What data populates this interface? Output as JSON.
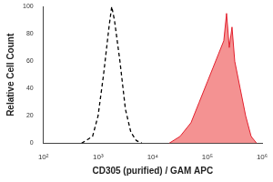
{
  "chart_data": {
    "type": "line",
    "log": "x",
    "xlabel": "CD305 (purified) / GAM APC",
    "ylabel": "Relative Cell Count",
    "xlim": [
      100,
      1000000
    ],
    "xticks": [
      {
        "value": 100,
        "label": "10²"
      },
      {
        "value": 1000,
        "label": "10³"
      },
      {
        "value": 10000,
        "label": "10⁴"
      },
      {
        "value": 100000,
        "label": "10⁵"
      },
      {
        "value": 1000000,
        "label": "10⁶"
      }
    ],
    "ylim": [
      0,
      100
    ],
    "yticks": [
      0,
      20,
      40,
      60,
      80,
      100
    ],
    "grid": false,
    "series": [
      {
        "color": "#000000",
        "line_style": "dashed",
        "x": [
          501,
          794,
          1000,
          1259,
          1585,
          1778,
          1995,
          2512,
          3162,
          3981,
          5012,
          6310
        ],
        "values": [
          0,
          5,
          20,
          50,
          85,
          100,
          90,
          60,
          25,
          8,
          2,
          0
        ]
      },
      {
        "color": "#e3202e",
        "line_style": "solid",
        "x": [
          19953,
          31623,
          50119,
          70795,
          100000,
          125893,
          158489,
          199526,
          223872,
          251189,
          281838,
          316228,
          398107,
          501187,
          630957,
          794328
        ],
        "values": [
          0,
          5,
          15,
          30,
          45,
          55,
          65,
          75,
          95,
          70,
          85,
          60,
          40,
          20,
          5,
          0
        ]
      }
    ]
  }
}
